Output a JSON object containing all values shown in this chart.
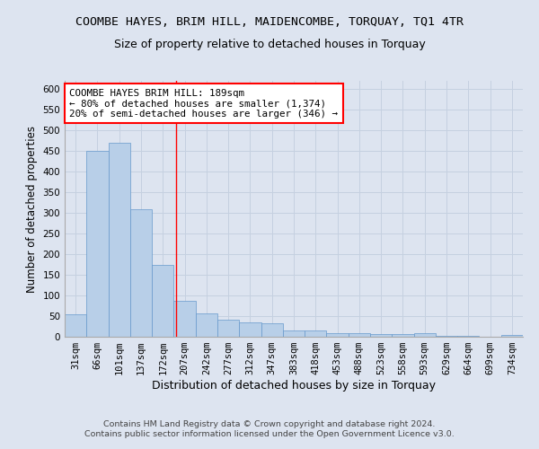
{
  "title": "COOMBE HAYES, BRIM HILL, MAIDENCOMBE, TORQUAY, TQ1 4TR",
  "subtitle": "Size of property relative to detached houses in Torquay",
  "xlabel": "Distribution of detached houses by size in Torquay",
  "ylabel": "Number of detached properties",
  "categories": [
    "31sqm",
    "66sqm",
    "101sqm",
    "137sqm",
    "172sqm",
    "207sqm",
    "242sqm",
    "277sqm",
    "312sqm",
    "347sqm",
    "383sqm",
    "418sqm",
    "453sqm",
    "488sqm",
    "523sqm",
    "558sqm",
    "593sqm",
    "629sqm",
    "664sqm",
    "699sqm",
    "734sqm"
  ],
  "values": [
    54,
    450,
    470,
    310,
    175,
    88,
    57,
    42,
    34,
    33,
    16,
    16,
    8,
    9,
    6,
    6,
    8,
    3,
    2,
    1,
    5
  ],
  "bar_color": "#b8cfe8",
  "bar_edge_color": "#6699cc",
  "grid_color": "#c5d0e0",
  "background_color": "#dde4f0",
  "red_line_index": 4.62,
  "annotation_line1": "COOMBE HAYES BRIM HILL: 189sqm",
  "annotation_line2": "← 80% of detached houses are smaller (1,374)",
  "annotation_line3": "20% of semi-detached houses are larger (346) →",
  "annotation_box_color": "white",
  "annotation_box_edge_color": "red",
  "ylim": [
    0,
    620
  ],
  "yticks": [
    0,
    50,
    100,
    150,
    200,
    250,
    300,
    350,
    400,
    450,
    500,
    550,
    600
  ],
  "footer_line1": "Contains HM Land Registry data © Crown copyright and database right 2024.",
  "footer_line2": "Contains public sector information licensed under the Open Government Licence v3.0.",
  "title_fontsize": 9.5,
  "subtitle_fontsize": 9,
  "xlabel_fontsize": 9,
  "ylabel_fontsize": 8.5,
  "tick_fontsize": 7.5,
  "annotation_fontsize": 7.8,
  "footer_fontsize": 6.8
}
